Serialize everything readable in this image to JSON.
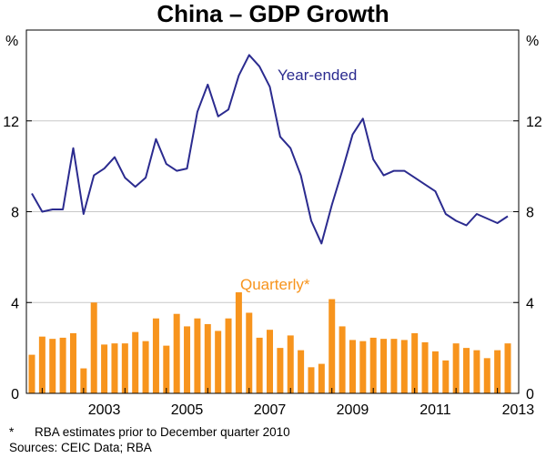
{
  "chart_data": {
    "type": "bar+line",
    "title": "China – GDP Growth",
    "ylabel_left": "%",
    "ylabel_right": "%",
    "ylim": [
      0,
      16
    ],
    "yticks": [
      0,
      4,
      8,
      12
    ],
    "x_tick_labels": [
      "2003",
      "2005",
      "2007",
      "2009",
      "2011",
      "2013"
    ],
    "grid": true,
    "series": [
      {
        "name": "Year-ended",
        "kind": "line",
        "color": "#2b2b8f",
        "x": [
          "2001-Q4",
          "2002-Q1",
          "2002-Q2",
          "2002-Q3",
          "2002-Q4",
          "2003-Q1",
          "2003-Q2",
          "2003-Q3",
          "2003-Q4",
          "2004-Q1",
          "2004-Q2",
          "2004-Q3",
          "2004-Q4",
          "2005-Q1",
          "2005-Q2",
          "2005-Q3",
          "2005-Q4",
          "2006-Q1",
          "2006-Q2",
          "2006-Q3",
          "2006-Q4",
          "2007-Q1",
          "2007-Q2",
          "2007-Q3",
          "2007-Q4",
          "2008-Q1",
          "2008-Q2",
          "2008-Q3",
          "2008-Q4",
          "2009-Q1",
          "2009-Q2",
          "2009-Q3",
          "2009-Q4",
          "2010-Q1",
          "2010-Q2",
          "2010-Q3",
          "2010-Q4",
          "2011-Q1",
          "2011-Q2",
          "2011-Q3",
          "2011-Q4",
          "2012-Q1",
          "2012-Q2",
          "2012-Q3",
          "2012-Q4",
          "2013-Q1",
          "2013-Q2"
        ],
        "values": [
          8.8,
          8.0,
          8.1,
          8.1,
          10.8,
          7.9,
          9.6,
          9.9,
          10.4,
          9.5,
          9.1,
          9.5,
          11.2,
          10.1,
          9.8,
          9.9,
          12.4,
          13.6,
          12.2,
          12.5,
          14.0,
          14.9,
          14.4,
          13.5,
          11.3,
          10.8,
          9.6,
          7.6,
          6.6,
          8.3,
          9.8,
          11.4,
          12.1,
          10.3,
          9.6,
          9.8,
          9.8,
          9.5,
          9.2,
          8.9,
          7.9,
          7.6,
          7.4,
          7.9,
          7.7,
          7.5,
          7.8
        ]
      },
      {
        "name": "Quarterly*",
        "kind": "bar",
        "color": "#f7941d",
        "values": [
          1.7,
          2.5,
          2.4,
          2.45,
          2.65,
          1.1,
          4.0,
          2.15,
          2.2,
          2.2,
          2.7,
          2.3,
          3.3,
          2.1,
          3.5,
          2.95,
          3.3,
          3.05,
          2.75,
          3.3,
          4.45,
          3.55,
          2.45,
          2.8,
          2.0,
          2.55,
          1.9,
          1.15,
          1.3,
          4.15,
          2.95,
          2.35,
          2.3,
          2.45,
          2.4,
          2.4,
          2.35,
          2.65,
          2.25,
          1.85,
          1.45,
          2.2,
          2.0,
          1.9,
          1.55,
          1.9,
          2.2
        ]
      }
    ]
  },
  "footnotes": {
    "marker": "*",
    "estimate_note": "RBA estimates prior to December quarter 2010",
    "sources": "Sources: CEIC Data; RBA"
  }
}
